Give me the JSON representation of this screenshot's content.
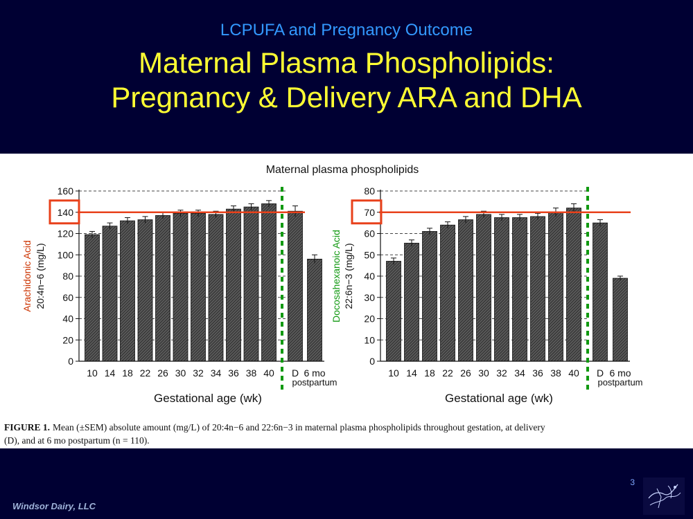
{
  "header": {
    "subtitle": "LCPUFA and Pregnancy Outcome",
    "title_line1": "Maternal Plasma Phospholipids:",
    "title_line2": "Pregnancy & Delivery ARA and DHA"
  },
  "footer": {
    "company": "Windsor Dairy, LLC",
    "page_number": "3",
    "logo_icon": "sketch-logo-icon"
  },
  "colors": {
    "background": "#000033",
    "subtitle": "#3399ff",
    "title": "#ffff33",
    "highlight_red": "#e8411b",
    "divider_green": "#119911",
    "ara_label": "#cc3300",
    "dha_label": "#119911"
  },
  "figure": {
    "title": "Maternal plasma phospholipids",
    "caption_bold": "FIGURE 1.",
    "caption_line1": "Mean (±SEM) absolute amount (mg/L) of 20:4n−6 and 22:6n−3 in maternal plasma phospholipids throughout gestation, at delivery",
    "caption_line2": "(D), and at 6 mo postpartum (n = 110).",
    "xlabel": "Gestational age (wk)",
    "postpartum_label": "postpartum"
  },
  "chart_data": [
    {
      "type": "bar",
      "categories": [
        "10",
        "14",
        "18",
        "22",
        "26",
        "30",
        "32",
        "34",
        "36",
        "38",
        "40",
        "D",
        "6 mo"
      ],
      "values": [
        119,
        127,
        132,
        133,
        137,
        139,
        139,
        138,
        143,
        145,
        148,
        141,
        96
      ],
      "errors": [
        3,
        3,
        3,
        3,
        3,
        3,
        3,
        3,
        3,
        3,
        3,
        5,
        4
      ],
      "ylabel_line1": "Arachidonic Acid",
      "ylabel_line2": "20:4n−6 (mg/L)",
      "xlabel": "Gestational age (wk)",
      "ylim": [
        0,
        160
      ],
      "yticks": [
        0,
        20,
        40,
        60,
        80,
        100,
        120,
        140,
        160
      ],
      "reference_line": 140,
      "highlight_tick": "140",
      "grid": true
    },
    {
      "type": "bar",
      "categories": [
        "10",
        "14",
        "18",
        "22",
        "26",
        "30",
        "32",
        "34",
        "36",
        "38",
        "40",
        "D",
        "6 mo"
      ],
      "values": [
        47,
        55.5,
        61,
        64,
        66.5,
        69,
        67.5,
        67.5,
        68,
        70,
        72,
        65,
        39
      ],
      "errors": [
        1.5,
        1.5,
        1.5,
        1.5,
        1.5,
        1.5,
        1.5,
        1.5,
        1.5,
        2,
        2,
        1.5,
        1
      ],
      "ylabel_line1": "Docosahexanoic Acid",
      "ylabel_line2": "22:6n−3 (mg/L)",
      "xlabel": "Gestational age (wk)",
      "ylim": [
        0,
        80
      ],
      "yticks": [
        0,
        10,
        20,
        30,
        40,
        50,
        60,
        70,
        80
      ],
      "reference_line": 70,
      "highlight_tick": "70",
      "grid": true
    }
  ]
}
